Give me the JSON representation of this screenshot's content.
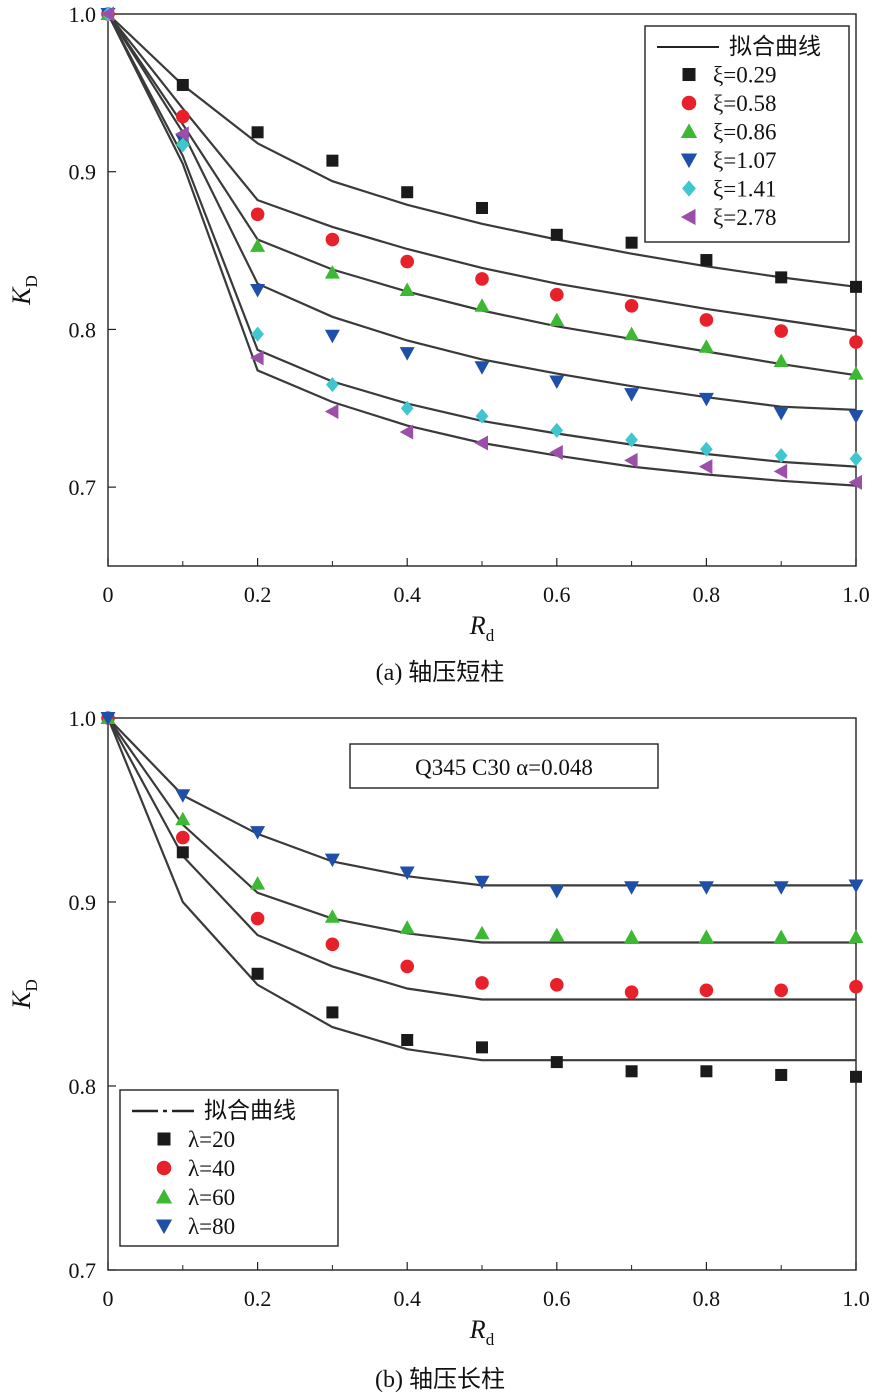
{
  "chart_data": [
    {
      "type": "scatter",
      "caption": "(a) 轴压短柱",
      "xlabel": {
        "main": "R",
        "sub": "d"
      },
      "ylabel": {
        "main": "K",
        "sub": "D"
      },
      "xlim": [
        0,
        1.0
      ],
      "ylim": [
        0.65,
        1.0
      ],
      "xticks": [
        0,
        0.2,
        0.4,
        0.6,
        0.8,
        1.0
      ],
      "xtick_labels": [
        "0",
        "0.2",
        "0.4",
        "0.6",
        "0.8",
        "1.0"
      ],
      "yticks": [
        0.7,
        0.8,
        0.9,
        1.0
      ],
      "ytick_labels": [
        "0.7",
        "0.8",
        "0.9",
        "1.0"
      ],
      "legend_position": "top-right",
      "fit_label": "拟合曲线",
      "x": [
        0,
        0.1,
        0.2,
        0.3,
        0.4,
        0.5,
        0.6,
        0.7,
        0.8,
        0.9,
        1.0
      ],
      "series": [
        {
          "name": "ξ=0.29",
          "marker": "square",
          "color": "#1a1a1a",
          "values": [
            1.0,
            0.955,
            0.925,
            0.907,
            0.887,
            0.877,
            0.86,
            0.855,
            0.844,
            0.833,
            0.827
          ],
          "fit": [
            1.0,
            0.955,
            0.918,
            0.894,
            0.879,
            0.867,
            0.857,
            0.848,
            0.84,
            0.833,
            0.827
          ]
        },
        {
          "name": "ξ=0.58",
          "marker": "circle",
          "color": "#e8202a",
          "values": [
            1.0,
            0.935,
            0.873,
            0.857,
            0.843,
            0.832,
            0.822,
            0.815,
            0.806,
            0.799,
            0.792
          ],
          "fit": [
            1.0,
            0.94,
            0.882,
            0.865,
            0.851,
            0.839,
            0.829,
            0.821,
            0.813,
            0.806,
            0.799
          ]
        },
        {
          "name": "ξ=0.86",
          "marker": "triangle-up",
          "color": "#3cb832",
          "values": [
            1.0,
            0.92,
            0.853,
            0.836,
            0.825,
            0.815,
            0.806,
            0.797,
            0.789,
            0.78,
            0.772
          ],
          "fit": [
            1.0,
            0.93,
            0.857,
            0.838,
            0.824,
            0.812,
            0.802,
            0.794,
            0.786,
            0.778,
            0.771
          ]
        },
        {
          "name": "ξ=1.07",
          "marker": "triangle-down",
          "color": "#1f4fa8",
          "values": [
            1.0,
            0.92,
            0.825,
            0.796,
            0.785,
            0.776,
            0.767,
            0.759,
            0.756,
            0.747,
            0.745
          ],
          "fit": [
            1.0,
            0.925,
            0.829,
            0.808,
            0.793,
            0.781,
            0.772,
            0.764,
            0.757,
            0.751,
            0.749
          ]
        },
        {
          "name": "ξ=1.41",
          "marker": "diamond",
          "color": "#3fc6cf",
          "values": [
            1.0,
            0.917,
            0.797,
            0.765,
            0.75,
            0.745,
            0.736,
            0.73,
            0.724,
            0.72,
            0.718
          ],
          "fit": [
            1.0,
            0.91,
            0.787,
            0.767,
            0.753,
            0.742,
            0.734,
            0.727,
            0.721,
            0.716,
            0.713
          ]
        },
        {
          "name": "ξ=2.78",
          "marker": "triangle-left",
          "color": "#9b4fa8",
          "values": [
            1.0,
            0.924,
            0.782,
            0.748,
            0.735,
            0.728,
            0.722,
            0.717,
            0.713,
            0.71,
            0.703
          ],
          "fit": [
            1.0,
            0.905,
            0.774,
            0.754,
            0.739,
            0.728,
            0.72,
            0.713,
            0.708,
            0.704,
            0.701
          ]
        }
      ]
    },
    {
      "type": "scatter",
      "caption": "(b) 轴压长柱",
      "annotation": "Q345 C30   α=0.048",
      "xlabel": {
        "main": "R",
        "sub": "d"
      },
      "ylabel": {
        "main": "K",
        "sub": "D"
      },
      "xlim": [
        0,
        1.0
      ],
      "ylim": [
        0.7,
        1.0
      ],
      "xticks": [
        0,
        0.2,
        0.4,
        0.6,
        0.8,
        1.0
      ],
      "xtick_labels": [
        "0",
        "0.2",
        "0.4",
        "0.6",
        "0.8",
        "1.0"
      ],
      "yticks": [
        0.7,
        0.8,
        0.9,
        1.0
      ],
      "ytick_labels": [
        "0.7",
        "0.8",
        "0.9",
        "1.0"
      ],
      "legend_position": "bottom-left",
      "fit_label": "拟合曲线",
      "x": [
        0,
        0.1,
        0.2,
        0.3,
        0.4,
        0.5,
        0.6,
        0.7,
        0.8,
        0.9,
        1.0
      ],
      "series": [
        {
          "name": "λ=20",
          "marker": "square",
          "color": "#1a1a1a",
          "values": [
            1.0,
            0.927,
            0.861,
            0.84,
            0.825,
            0.821,
            0.813,
            0.808,
            0.808,
            0.806,
            0.805
          ],
          "fit": [
            1.0,
            0.9,
            0.855,
            0.832,
            0.82,
            0.814,
            0.814,
            0.814,
            0.814,
            0.814,
            0.814
          ]
        },
        {
          "name": "λ=40",
          "marker": "circle",
          "color": "#e8202a",
          "values": [
            1.0,
            0.935,
            0.891,
            0.877,
            0.865,
            0.856,
            0.855,
            0.851,
            0.852,
            0.852,
            0.854
          ],
          "fit": [
            1.0,
            0.925,
            0.882,
            0.865,
            0.853,
            0.847,
            0.847,
            0.847,
            0.847,
            0.847,
            0.847
          ]
        },
        {
          "name": "λ=60",
          "marker": "triangle-up",
          "color": "#3cb832",
          "values": [
            1.0,
            0.945,
            0.91,
            0.892,
            0.886,
            0.883,
            0.882,
            0.881,
            0.881,
            0.881,
            0.881
          ],
          "fit": [
            1.0,
            0.942,
            0.905,
            0.891,
            0.883,
            0.878,
            0.878,
            0.878,
            0.878,
            0.878,
            0.878
          ]
        },
        {
          "name": "λ=80",
          "marker": "triangle-down",
          "color": "#1f4fa8",
          "values": [
            1.0,
            0.958,
            0.938,
            0.923,
            0.916,
            0.911,
            0.906,
            0.908,
            0.908,
            0.908,
            0.909
          ],
          "fit": [
            1.0,
            0.958,
            0.937,
            0.922,
            0.914,
            0.909,
            0.909,
            0.909,
            0.909,
            0.909,
            0.909
          ]
        }
      ]
    }
  ]
}
